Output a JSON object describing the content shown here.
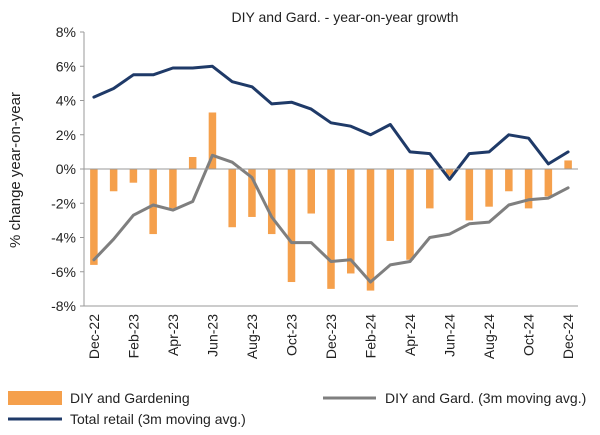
{
  "chart_data": {
    "type": "bar",
    "title": "DIY and Gard. - year-on-year  growth",
    "xlabel": "",
    "ylabel": "% change year-on-year",
    "ylim": [
      -8,
      8
    ],
    "yticks": [
      "8%",
      "6%",
      "4%",
      "2%",
      "0%",
      "-2%",
      "-4%",
      "-6%",
      "-8%"
    ],
    "ytick_values": [
      8,
      6,
      4,
      2,
      0,
      -2,
      -4,
      -6,
      -8
    ],
    "categories": [
      "Dec-22",
      "Jan-23",
      "Feb-23",
      "Mar-23",
      "Apr-23",
      "May-23",
      "Jun-23",
      "Jul-23",
      "Aug-23",
      "Sep-23",
      "Oct-23",
      "Nov-23",
      "Dec-23",
      "Jan-24",
      "Feb-24",
      "Mar-24",
      "Apr-24",
      "May-24",
      "Jun-24",
      "Jul-24",
      "Aug-24",
      "Sep-24",
      "Oct-24",
      "Nov-24",
      "Dec-24"
    ],
    "xtick_labels": [
      "Dec-22",
      "",
      "Feb-23",
      "",
      "Apr-23",
      "",
      "Jun-23",
      "",
      "Aug-23",
      "",
      "Oct-23",
      "",
      "Dec-23",
      "",
      "Feb-24",
      "",
      "Apr-24",
      "",
      "Jun-24",
      "",
      "Aug-24",
      "",
      "Oct-24",
      "",
      "Dec-24"
    ],
    "series": [
      {
        "name": "DIY and Gardening",
        "kind": "bar",
        "color": "#F5A04C",
        "values": [
          -5.6,
          -1.3,
          -0.8,
          -3.8,
          -2.3,
          0.7,
          3.3,
          -3.4,
          -2.8,
          -3.8,
          -6.6,
          -2.6,
          -7.0,
          -6.1,
          -7.1,
          -4.2,
          -5.3,
          -2.3,
          -0.4,
          -3.0,
          -2.2,
          -1.3,
          -2.3,
          -1.6,
          0.5
        ]
      },
      {
        "name": "DIY and Gard. (3m moving avg.)",
        "kind": "line",
        "color": "#7F7F7F",
        "values": [
          -5.3,
          -4.1,
          -2.7,
          -2.1,
          -2.4,
          -1.9,
          0.8,
          0.4,
          -0.5,
          -2.8,
          -4.3,
          -4.3,
          -5.4,
          -5.3,
          -6.6,
          -5.6,
          -5.4,
          -4.0,
          -3.8,
          -3.2,
          -3.1,
          -2.1,
          -1.8,
          -1.7,
          -1.1
        ]
      },
      {
        "name": "Total retail (3m moving avg.)",
        "kind": "line",
        "color": "#1F3A68",
        "values": [
          4.2,
          4.7,
          5.5,
          5.5,
          5.9,
          5.9,
          6.0,
          5.1,
          4.8,
          3.8,
          3.9,
          3.5,
          2.7,
          2.5,
          2.0,
          2.6,
          1.0,
          0.9,
          -0.6,
          0.9,
          1.0,
          2.0,
          1.8,
          0.3,
          1.0
        ]
      }
    ],
    "grid": false,
    "legend_position": "bottom"
  }
}
